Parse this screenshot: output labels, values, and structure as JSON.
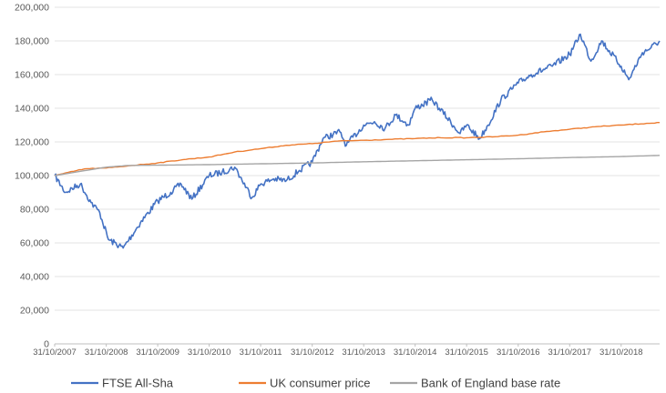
{
  "chart_data": {
    "type": "line",
    "title": "",
    "xlabel": "",
    "ylabel": "",
    "ylim": [
      0,
      200000
    ],
    "xlim": [
      "2007-10-31",
      "2019-07-31"
    ],
    "grid": true,
    "legend_position": "bottom",
    "y_ticks": [
      "0",
      "20,000",
      "40,000",
      "60,000",
      "80,000",
      "100,000",
      "120,000",
      "140,000",
      "160,000",
      "180,000",
      "200,000"
    ],
    "x_ticks": [
      "31/10/2007",
      "31/10/2008",
      "31/10/2009",
      "31/10/2010",
      "31/10/2011",
      "31/10/2012",
      "31/10/2013",
      "31/10/2014",
      "31/10/2015",
      "31/10/2016",
      "31/10/2017",
      "31/10/2018"
    ],
    "series": [
      {
        "name": "FTSE All-Sha",
        "color": "#4472c4",
        "x": [
          "2007-10-31",
          "2008-01-15",
          "2008-04-30",
          "2008-07-15",
          "2008-09-15",
          "2008-11-15",
          "2009-02-28",
          "2009-06-30",
          "2009-10-31",
          "2010-01-31",
          "2010-04-15",
          "2010-06-30",
          "2010-10-31",
          "2011-01-31",
          "2011-04-30",
          "2011-08-31",
          "2011-10-31",
          "2012-01-31",
          "2012-04-30",
          "2012-07-31",
          "2012-10-31",
          "2013-01-15",
          "2013-05-15",
          "2013-06-30",
          "2013-10-31",
          "2014-01-15",
          "2014-03-31",
          "2014-06-15",
          "2014-09-15",
          "2014-10-31",
          "2015-03-01",
          "2015-04-20",
          "2015-09-15",
          "2015-10-31",
          "2016-01-31",
          "2016-03-31",
          "2016-06-30",
          "2016-10-31",
          "2017-01-31",
          "2017-06-30",
          "2017-10-31",
          "2018-01-15",
          "2018-03-31",
          "2018-06-15",
          "2018-10-31",
          "2018-12-24",
          "2019-03-31",
          "2019-05-31",
          "2019-07-31"
        ],
        "values": [
          100000,
          90000,
          95000,
          84000,
          78000,
          62000,
          57000,
          72000,
          85000,
          90000,
          95000,
          86000,
          100000,
          102000,
          105000,
          87000,
          95000,
          98000,
          97000,
          103000,
          108000,
          122000,
          126000,
          118000,
          130000,
          132000,
          128000,
          136000,
          130000,
          140000,
          145000,
          140000,
          125000,
          130000,
          122000,
          130000,
          145000,
          155000,
          160000,
          165000,
          172000,
          184000,
          168000,
          180000,
          165000,
          157000,
          173000,
          176000,
          180000
        ]
      },
      {
        "name": "UK consumer price",
        "color": "#ed7d31",
        "x": [
          "2007-10-31",
          "2008-05-31",
          "2008-10-31",
          "2009-04-30",
          "2009-10-31",
          "2010-04-30",
          "2010-10-31",
          "2011-04-30",
          "2011-10-31",
          "2012-04-30",
          "2012-10-31",
          "2013-04-30",
          "2013-10-31",
          "2014-04-30",
          "2014-10-31",
          "2015-04-30",
          "2015-10-31",
          "2016-04-30",
          "2016-10-31",
          "2017-04-30",
          "2017-10-31",
          "2018-04-30",
          "2018-10-31",
          "2019-04-30",
          "2019-07-31"
        ],
        "values": [
          100000,
          104000,
          104500,
          106000,
          107500,
          109500,
          111000,
          114000,
          116000,
          118000,
          119000,
          120500,
          121000,
          121500,
          122000,
          122500,
          122500,
          123000,
          124000,
          126000,
          127500,
          129000,
          130000,
          131000,
          131500
        ]
      },
      {
        "name": "Bank of England base rate",
        "color": "#a5a5a5",
        "x": [
          "2007-10-31",
          "2008-10-31",
          "2009-03-31",
          "2010-10-31",
          "2011-10-31",
          "2012-10-31",
          "2013-10-31",
          "2014-10-31",
          "2015-10-31",
          "2016-10-31",
          "2017-10-31",
          "2018-10-31",
          "2019-07-31"
        ],
        "values": [
          100000,
          105000,
          106000,
          106500,
          107000,
          107500,
          108200,
          108800,
          109400,
          110000,
          110700,
          111300,
          112000
        ]
      }
    ]
  }
}
